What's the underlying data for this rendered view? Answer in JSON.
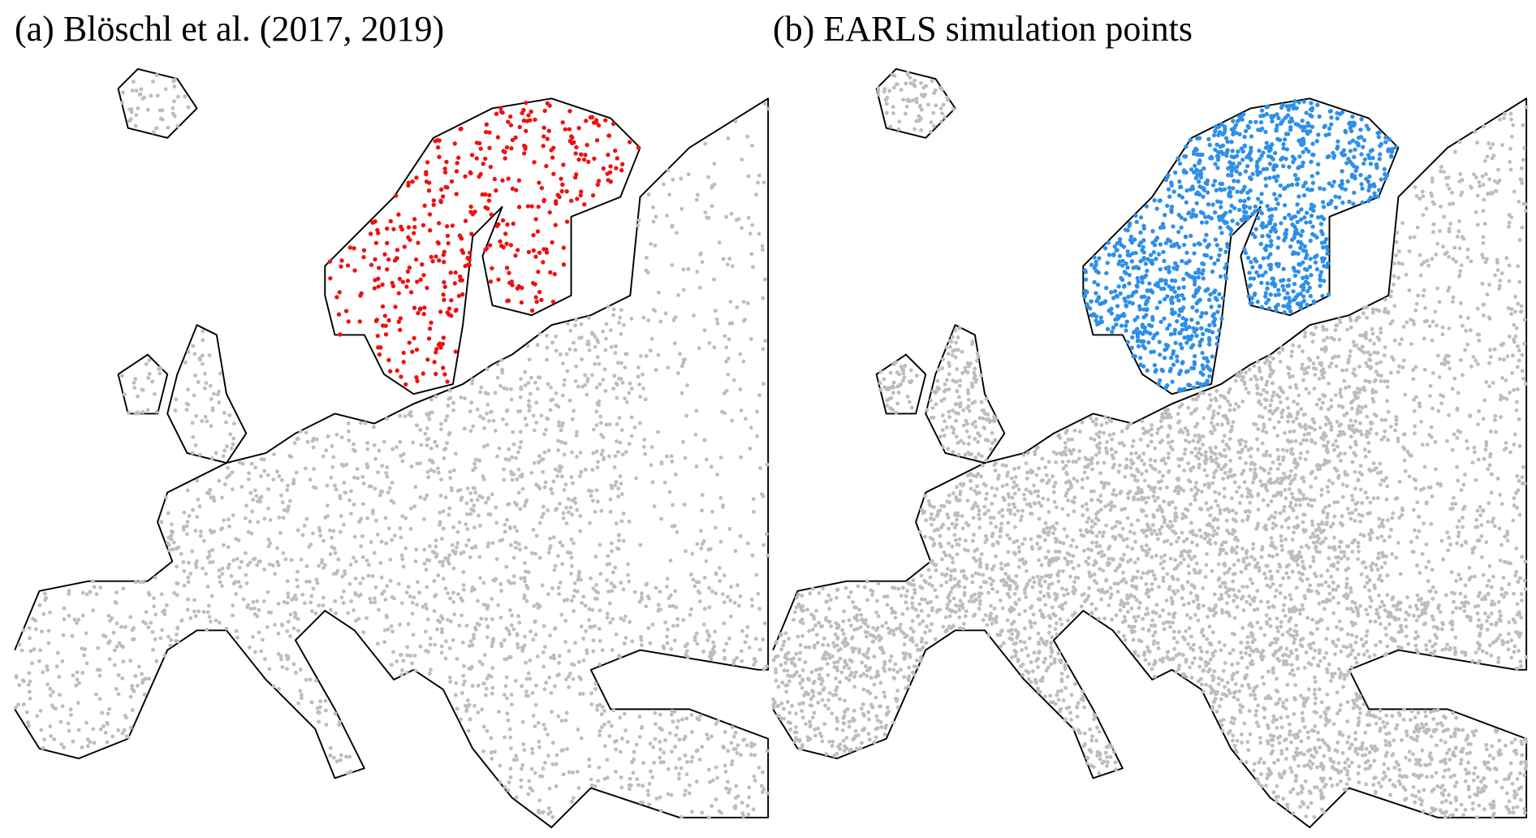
{
  "panels": [
    {
      "title": "(a) Blöschl et al. (2017, 2019)"
    },
    {
      "title": "(b) EARLS simulation points"
    }
  ]
}
